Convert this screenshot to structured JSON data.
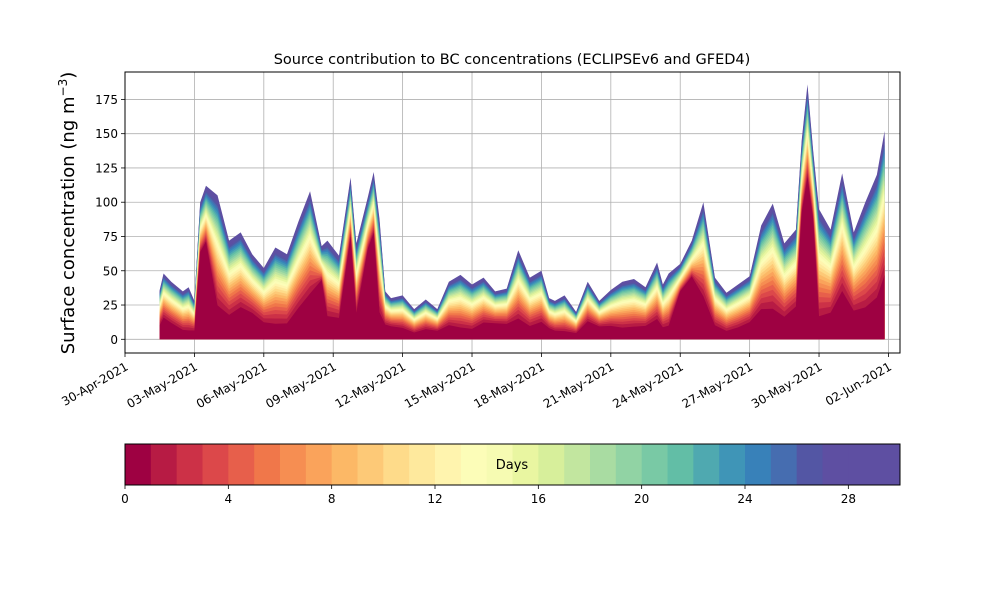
{
  "chart_data": {
    "type": "area",
    "stacking": "cumulative by age",
    "title": "Source contribution to BC concentrations (ECLIPSEv6 and GFED4)",
    "ylabel_main": "Surface concentration (ng m",
    "ylabel_sup": "−3",
    "ylabel_end": ")",
    "xlabel": "",
    "ylim": [
      -10,
      195
    ],
    "xlim": [
      "2021-04-30T00:00",
      "2021-06-02T12:00"
    ],
    "grid": true,
    "yticks": [
      0,
      25,
      50,
      75,
      100,
      125,
      150,
      175
    ],
    "xticks": [
      {
        "date": "2021-04-30",
        "label": "30-Apr-2021"
      },
      {
        "date": "2021-05-03",
        "label": "03-May-2021"
      },
      {
        "date": "2021-05-06",
        "label": "06-May-2021"
      },
      {
        "date": "2021-05-09",
        "label": "09-May-2021"
      },
      {
        "date": "2021-05-12",
        "label": "12-May-2021"
      },
      {
        "date": "2021-05-15",
        "label": "15-May-2021"
      },
      {
        "date": "2021-05-18",
        "label": "18-May-2021"
      },
      {
        "date": "2021-05-21",
        "label": "21-May-2021"
      },
      {
        "date": "2021-05-24",
        "label": "24-May-2021"
      },
      {
        "date": "2021-05-27",
        "label": "27-May-2021"
      },
      {
        "date": "2021-05-30",
        "label": "30-May-2021"
      },
      {
        "date": "2021-06-02",
        "label": "02-Jun-2021"
      }
    ],
    "total": {
      "x": [
        "2021-05-01T12:00",
        "2021-05-01T16:00",
        "2021-05-02T00:00",
        "2021-05-02T12:00",
        "2021-05-02T18:00",
        "2021-05-03T00:00",
        "2021-05-03T06:00",
        "2021-05-03T12:00",
        "2021-05-04T00:00",
        "2021-05-04T12:00",
        "2021-05-05T00:00",
        "2021-05-05T12:00",
        "2021-05-06T00:00",
        "2021-05-06T12:00",
        "2021-05-07T00:00",
        "2021-05-07T12:00",
        "2021-05-08T00:00",
        "2021-05-08T12:00",
        "2021-05-08T18:00",
        "2021-05-09T06:00",
        "2021-05-09T18:00",
        "2021-05-10T00:00",
        "2021-05-10T12:00",
        "2021-05-10T18:00",
        "2021-05-11T00:00",
        "2021-05-11T06:00",
        "2021-05-11T12:00",
        "2021-05-12T00:00",
        "2021-05-12T12:00",
        "2021-05-13T00:00",
        "2021-05-13T12:00",
        "2021-05-14T00:00",
        "2021-05-14T12:00",
        "2021-05-15T00:00",
        "2021-05-15T12:00",
        "2021-05-16T00:00",
        "2021-05-16T12:00",
        "2021-05-17T00:00",
        "2021-05-17T12:00",
        "2021-05-18T00:00",
        "2021-05-18T08:00",
        "2021-05-18T14:00",
        "2021-05-19T00:00",
        "2021-05-19T12:00",
        "2021-05-20T00:00",
        "2021-05-20T12:00",
        "2021-05-21T00:00",
        "2021-05-21T12:00",
        "2021-05-22T00:00",
        "2021-05-22T12:00",
        "2021-05-23T00:00",
        "2021-05-23T06:00",
        "2021-05-23T12:00",
        "2021-05-24T00:00",
        "2021-05-24T12:00",
        "2021-05-25T00:00",
        "2021-05-25T12:00",
        "2021-05-26T00:00",
        "2021-05-26T12:00",
        "2021-05-27T00:00",
        "2021-05-27T12:00",
        "2021-05-28T00:00",
        "2021-05-28T12:00",
        "2021-05-29T00:00",
        "2021-05-29T06:00",
        "2021-05-29T12:00",
        "2021-05-29T18:00",
        "2021-05-30T00:00",
        "2021-05-30T12:00",
        "2021-05-31T00:00",
        "2021-05-31T12:00",
        "2021-06-01T00:00",
        "2021-06-01T12:00",
        "2021-06-01T20:00"
      ],
      "y": [
        36,
        48,
        42,
        35,
        38,
        28,
        100,
        112,
        105,
        72,
        78,
        62,
        52,
        67,
        62,
        86,
        108,
        68,
        72,
        61,
        118,
        70,
        104,
        122,
        88,
        35,
        30,
        32,
        22,
        29,
        22,
        42,
        47,
        40,
        45,
        35,
        37,
        65,
        45,
        50,
        30,
        28,
        32,
        20,
        42,
        28,
        36,
        42,
        44,
        38,
        56,
        40,
        48,
        55,
        72,
        100,
        45,
        34,
        40,
        46,
        83,
        99,
        70,
        80,
        145,
        186,
        137,
        95,
        80,
        121,
        78,
        100,
        120,
        152
      ]
    },
    "color_scale": {
      "label": "Days",
      "min": 0,
      "max": 30,
      "ticks": [
        0,
        4,
        8,
        12,
        16,
        20,
        24,
        28
      ],
      "colors": [
        "#9e0142",
        "#b71b44",
        "#cc3147",
        "#dc484a",
        "#e75f4b",
        "#f0774a",
        "#f68e52",
        "#faa35b",
        "#fcb866",
        "#fdc977",
        "#fedb8a",
        "#fee99d",
        "#fff4ae",
        "#fcfdb8",
        "#f6fbb2",
        "#e9f6a1",
        "#d7ef9b",
        "#c2e69f",
        "#a9dca2",
        "#91d3a4",
        "#79c9a5",
        "#62bea6",
        "#4fa9b0",
        "#3f95b7",
        "#3881b9",
        "#466db0",
        "#5356a4",
        "#5e4fa2",
        "#5e4fa2",
        "#5e4fa2"
      ]
    }
  }
}
